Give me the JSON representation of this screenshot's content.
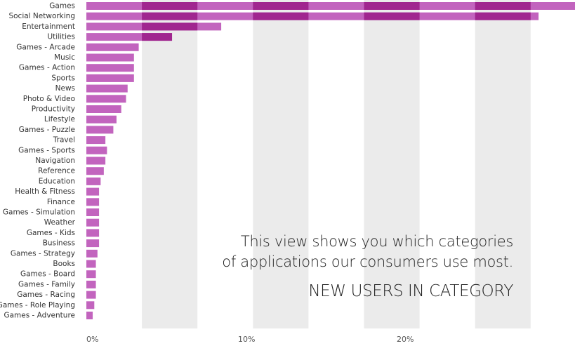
{
  "chart_data": {
    "type": "bar",
    "orientation": "horizontal",
    "title": "NEW USERS IN CATEGORY",
    "description_lines": [
      "This view shows you which categories",
      "of applications our consumers use most."
    ],
    "categories": [
      "Games",
      "Social Networking",
      "Entertainment",
      "Utilities",
      "Games - Arcade",
      "Music",
      "Games - Action",
      "Sports",
      "News",
      "Photo & Video",
      "Productivity",
      "Lifestyle",
      "Games - Puzzle",
      "Travel",
      "Games - Sports",
      "Navigation",
      "Reference",
      "Education",
      "Health & Fitness",
      "Finance",
      "Games - Simulation",
      "Weather",
      "Games - Kids",
      "Business",
      "Games - Strategy",
      "Books",
      "Games - Board",
      "Games - Family",
      "Games - Racing",
      "Games - Role Playing",
      "Games - Adventure"
    ],
    "values": [
      31,
      28.5,
      8.5,
      5.4,
      3.3,
      3.0,
      3.0,
      3.0,
      2.6,
      2.5,
      2.2,
      1.9,
      1.7,
      1.2,
      1.3,
      1.2,
      1.1,
      0.9,
      0.8,
      0.8,
      0.8,
      0.8,
      0.8,
      0.8,
      0.7,
      0.6,
      0.6,
      0.6,
      0.6,
      0.5,
      0.4
    ],
    "x_tick_labels": [
      "0%",
      "10%",
      "20%"
    ],
    "xlim": [
      0,
      31
    ],
    "grid": "alternating vertical bands",
    "colors": {
      "bar": "#c264be",
      "bar_dark": "#a0268f",
      "band": "#ebebeb"
    }
  }
}
